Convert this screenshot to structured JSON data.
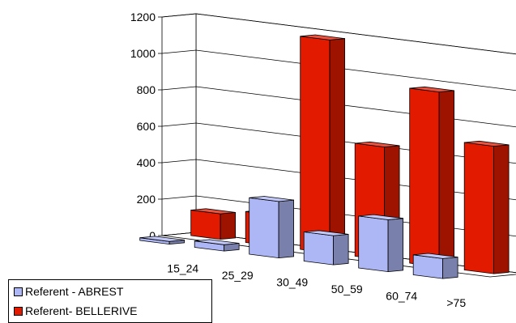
{
  "chart_data": {
    "type": "bar",
    "style": "3d-column",
    "categories": [
      "15_24",
      "25_29",
      "30_49",
      "50_59",
      "60_74",
      ">75"
    ],
    "series": [
      {
        "name": "Referent - ABREST",
        "color": "#aeb7f6",
        "values": [
          15,
          35,
          310,
          160,
          285,
          110
        ]
      },
      {
        "name": "Referent- BELLERIVE",
        "color": "#e21a00",
        "values": [
          140,
          170,
          1170,
          620,
          960,
          700
        ]
      }
    ],
    "yticks": [
      0,
      200,
      400,
      600,
      800,
      1000,
      1200
    ],
    "ylim": [
      0,
      1200
    ],
    "grid": true,
    "legend_position": "bottom-left"
  }
}
